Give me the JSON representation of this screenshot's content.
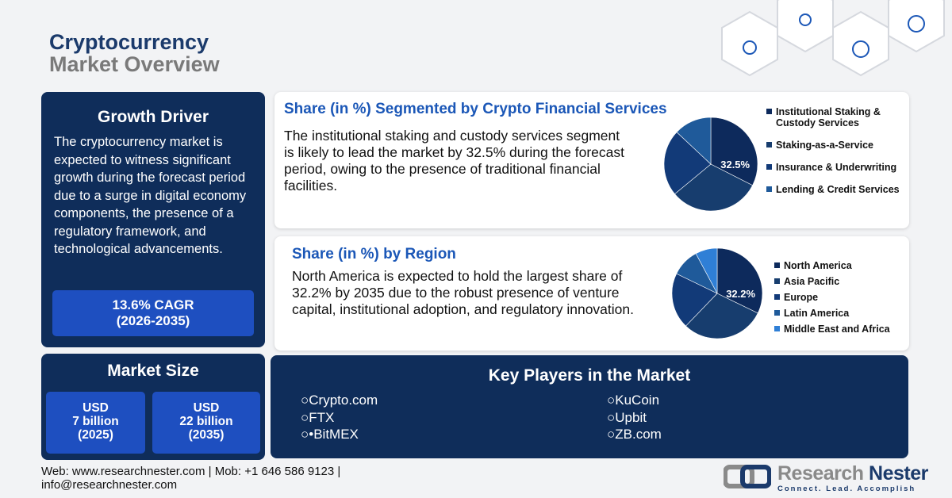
{
  "header": {
    "title_line1": "Cryptocurrency",
    "title_line2": "Market Overview"
  },
  "growth_driver": {
    "title": "Growth Driver",
    "text": "The cryptocurrency market is expected to witness significant growth during the forecast period due to a surge in digital economy components, the presence of a regulatory framework, and technological advancements.",
    "cagr_line1": "13.6% CAGR",
    "cagr_line2": "(2026-2035)"
  },
  "market_size": {
    "title": "Market Size",
    "items": [
      {
        "l1": "USD",
        "l2": "7 billion",
        "l3": "(2025)"
      },
      {
        "l1": "USD",
        "l2": "22 billion",
        "l3": "(2035)"
      }
    ]
  },
  "services": {
    "title": "Share (in %) Segmented by Crypto Financial Services",
    "text": "The institutional staking and custody services segment is likely to lead the market by 32.5% during the forecast period, owing to the presence of traditional financial facilities."
  },
  "region": {
    "title": "Share (in %) by Region",
    "text": "North America is expected to hold the largest share of 32.2% by 2035 due to the robust presence of venture capital, institutional adoption, and regulatory innovation."
  },
  "key_players": {
    "title": "Key Players in the Market",
    "left": [
      "○Crypto.com",
      "○FTX",
      "○•BitMEX"
    ],
    "right": [
      "○KuCoin",
      "○Upbit",
      "○ZB.com"
    ]
  },
  "footer": {
    "line1": "Web: www.researchnester.com | Mob: +1 646 586 9123 |",
    "line2": "info@researchnester.com"
  },
  "logo": {
    "name": "Research Nester",
    "tagline": "Connect. Lead. Accomplish"
  },
  "chart_data": [
    {
      "type": "pie",
      "categories": [
        "Institutional Staking & Custody Services",
        "Staking-as-a-Service",
        "Insurance & Underwriting",
        "Lending & Credit Services"
      ],
      "values": [
        32.5,
        31.5,
        23,
        13
      ],
      "labels": [
        "32.5%"
      ],
      "colors": [
        "#0d2a5c",
        "#173d6e",
        "#123a78",
        "#1f5a9a"
      ],
      "legend": "right"
    },
    {
      "type": "pie",
      "categories": [
        "North America",
        "Asia Pacific",
        "Europe",
        "Latin America",
        "Middle East and Africa"
      ],
      "values": [
        32.2,
        30,
        20,
        10,
        7.8
      ],
      "labels": [
        "32.2%"
      ],
      "colors": [
        "#0d2a5c",
        "#173d6e",
        "#123a78",
        "#1f5a9a",
        "#2f7fd6"
      ],
      "legend": "right"
    }
  ]
}
